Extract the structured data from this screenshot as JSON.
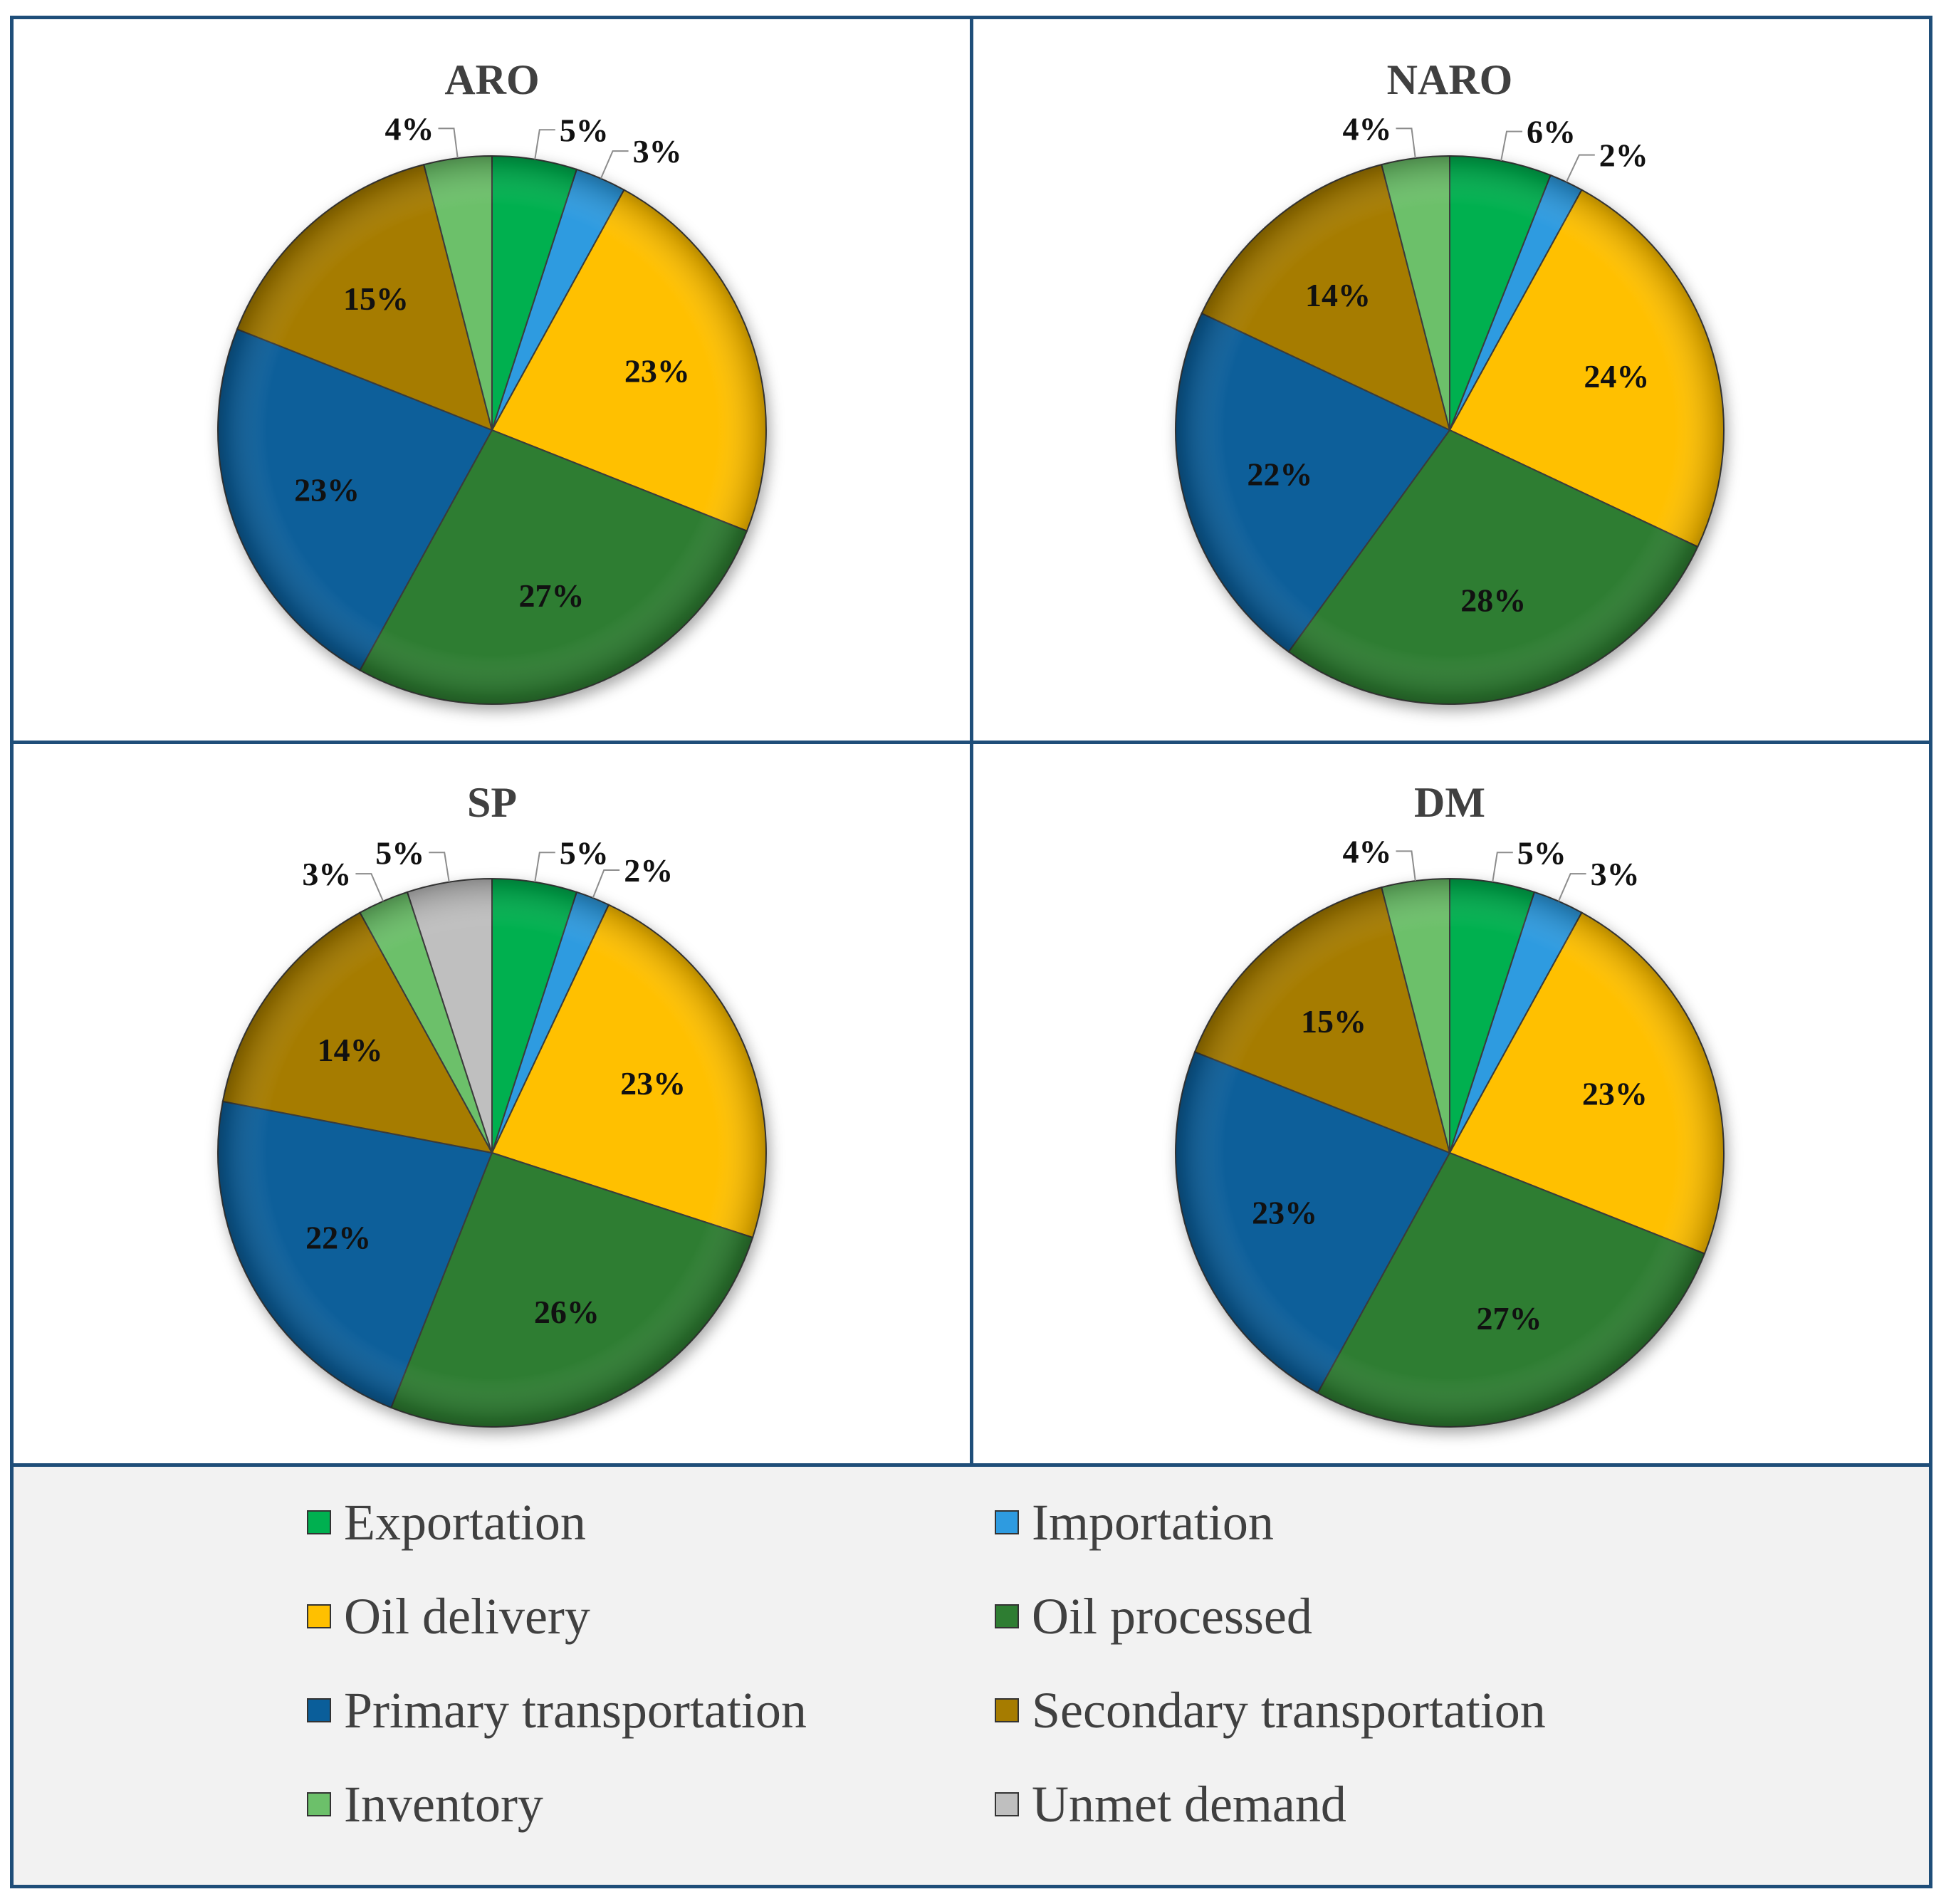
{
  "legend_colors": {
    "Exportation": "#00B050",
    "Importation": "#2E9BE0",
    "Oil delivery": "#FFC000",
    "Oil processed": "#2E7D32",
    "Primary transportation": "#0A5E9A",
    "Secondary transportation": "#A67C00",
    "Inventory": "#6CC06A",
    "Unmet demand": "#BFBFBF"
  },
  "legend": {
    "items": [
      "Exportation",
      "Importation",
      "Oil delivery",
      "Oil processed",
      "Primary transportation",
      "Secondary transportation",
      "Inventory",
      "Unmet demand"
    ]
  },
  "chart_data": [
    {
      "type": "pie",
      "title": "ARO",
      "categories": [
        "Exportation",
        "Importation",
        "Oil delivery",
        "Oil processed",
        "Primary transportation",
        "Secondary transportation",
        "Inventory"
      ],
      "values": [
        5,
        3,
        23,
        27,
        23,
        15,
        4
      ],
      "labels": [
        "5%",
        "3%",
        "23%",
        "27%",
        "23%",
        "15%",
        "4%"
      ]
    },
    {
      "type": "pie",
      "title": "NARO",
      "categories": [
        "Exportation",
        "Importation",
        "Oil delivery",
        "Oil processed",
        "Primary transportation",
        "Secondary transportation",
        "Inventory"
      ],
      "values": [
        6,
        2,
        24,
        28,
        22,
        14,
        4
      ],
      "labels": [
        "6%",
        "2%",
        "24%",
        "28%",
        "22%",
        "14%",
        "4%"
      ]
    },
    {
      "type": "pie",
      "title": "SP",
      "categories": [
        "Exportation",
        "Importation",
        "Oil delivery",
        "Oil processed",
        "Primary transportation",
        "Secondary transportation",
        "Inventory",
        "Unmet demand"
      ],
      "values": [
        5,
        2,
        23,
        26,
        22,
        14,
        3,
        5
      ],
      "labels": [
        "5%",
        "2%",
        "23%",
        "26%",
        "22%",
        "14%",
        "3%",
        "5%"
      ]
    },
    {
      "type": "pie",
      "title": "DM",
      "categories": [
        "Exportation",
        "Importation",
        "Oil delivery",
        "Oil processed",
        "Primary transportation",
        "Secondary transportation",
        "Inventory"
      ],
      "values": [
        5,
        3,
        23,
        27,
        23,
        15,
        4
      ],
      "labels": [
        "5%",
        "3%",
        "23%",
        "27%",
        "23%",
        "15%",
        "4%"
      ]
    }
  ]
}
